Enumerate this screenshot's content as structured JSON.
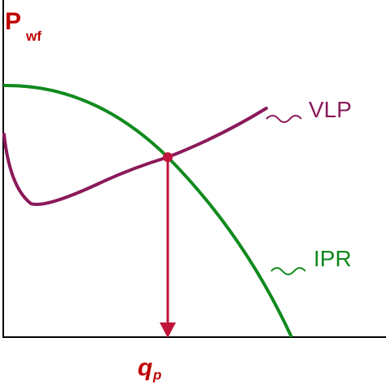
{
  "diagram": {
    "colors": {
      "axis": "#000000",
      "label_red": "#c00000",
      "vlp": "#8b1a5a",
      "ipr": "#118a1e",
      "operating_point": "#c0143c",
      "arrow": "#c0143c"
    },
    "y_axis_label": {
      "main": "P",
      "sub": "wf"
    },
    "x_axis_label": {
      "main": "q",
      "sub": "p"
    },
    "curves": [
      {
        "name": "VLP"
      },
      {
        "name": "IPR"
      }
    ]
  }
}
